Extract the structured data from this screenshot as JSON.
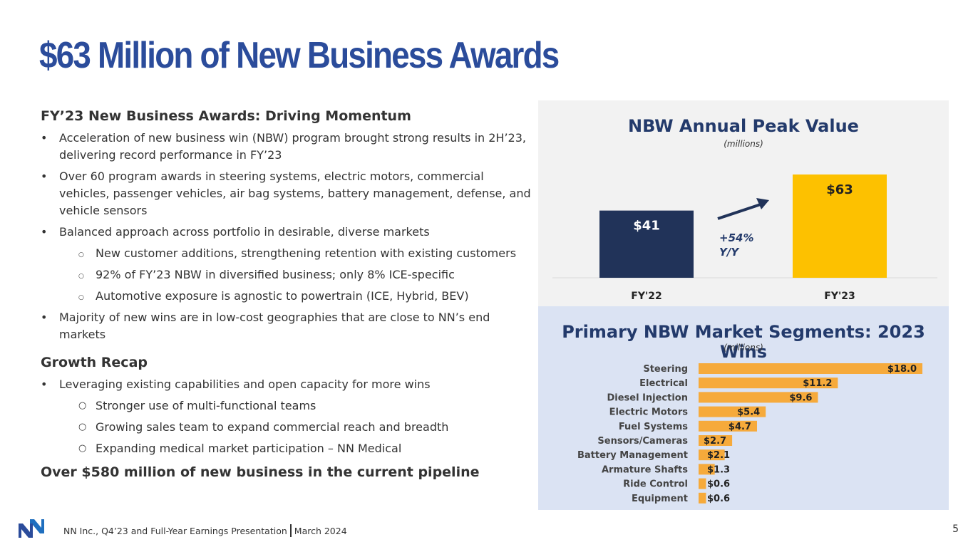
{
  "title": "$63 Million of New Business Awards",
  "left": {
    "section1_heading": "FY’23 New Business Awards: Driving Momentum",
    "bullets1": [
      "Acceleration of new business win (NBW) program brought strong results in 2H’23, delivering record performance in FY’23",
      "Over 60 program awards in steering systems, electric motors, commercial vehicles, passenger vehicles, air bag systems, battery management, defense, and vehicle sensors",
      "Balanced approach across portfolio in desirable, diverse markets"
    ],
    "subbullets1": [
      "New customer additions, strengthening retention with existing customers",
      "92% of FY’23 NBW in diversified business; only 8% ICE-specific",
      "Automotive exposure is agnostic to powertrain (ICE, Hybrid, BEV)"
    ],
    "bullet1_last": "Majority of new wins are in low-cost geographies that are close to NN’s end markets",
    "section2_heading": "Growth Recap",
    "bullets2": [
      "Leveraging existing capabilities and open capacity for more wins"
    ],
    "subbullets2": [
      "Stronger use of multi-functional teams",
      "Growing sales team to expand commercial reach and breadth",
      "Expanding medical market participation – NN Medical"
    ],
    "closing": "Over $580 million of new business in the current pipeline"
  },
  "chart_data": [
    {
      "type": "bar",
      "title": "NBW Annual Peak Value",
      "subtitle": "(millions)",
      "categories": [
        "FY'22",
        "FY'23"
      ],
      "values": [
        41,
        63
      ],
      "data_labels": [
        "$41",
        "$63"
      ],
      "colors": [
        "#213359",
        "#fdc100"
      ],
      "annotation": [
        "+54%",
        "Y/Y"
      ]
    },
    {
      "type": "bar",
      "orientation": "horizontal",
      "title": "Primary NBW Market Segments: 2023 Wins",
      "subtitle": "(millions)",
      "categories": [
        "Steering",
        "Electrical",
        "Diesel Injection",
        "Electric Motors",
        "Fuel Systems",
        "Sensors/Cameras",
        "Battery Management",
        "Armature Shafts",
        "Ride Control",
        "Equipment"
      ],
      "values": [
        18.0,
        11.2,
        9.6,
        5.4,
        4.7,
        2.7,
        2.1,
        1.3,
        0.6,
        0.6
      ],
      "data_labels": [
        "$18.0",
        "$11.2",
        "$9.6",
        "$5.4",
        "$4.7",
        "$2.7",
        "$2.1",
        "$1.3",
        "$0.6",
        "$0.6"
      ],
      "color": "#f6aa3b"
    }
  ],
  "footer": {
    "left_text": "NN Inc., Q4’23 and Full-Year Earnings Presentation",
    "right_text": "March 2024",
    "page": "5"
  },
  "colors": {
    "title": "#2b4c9b",
    "navy": "#213359",
    "gold": "#fdc100",
    "orange": "#f6aa3b"
  }
}
